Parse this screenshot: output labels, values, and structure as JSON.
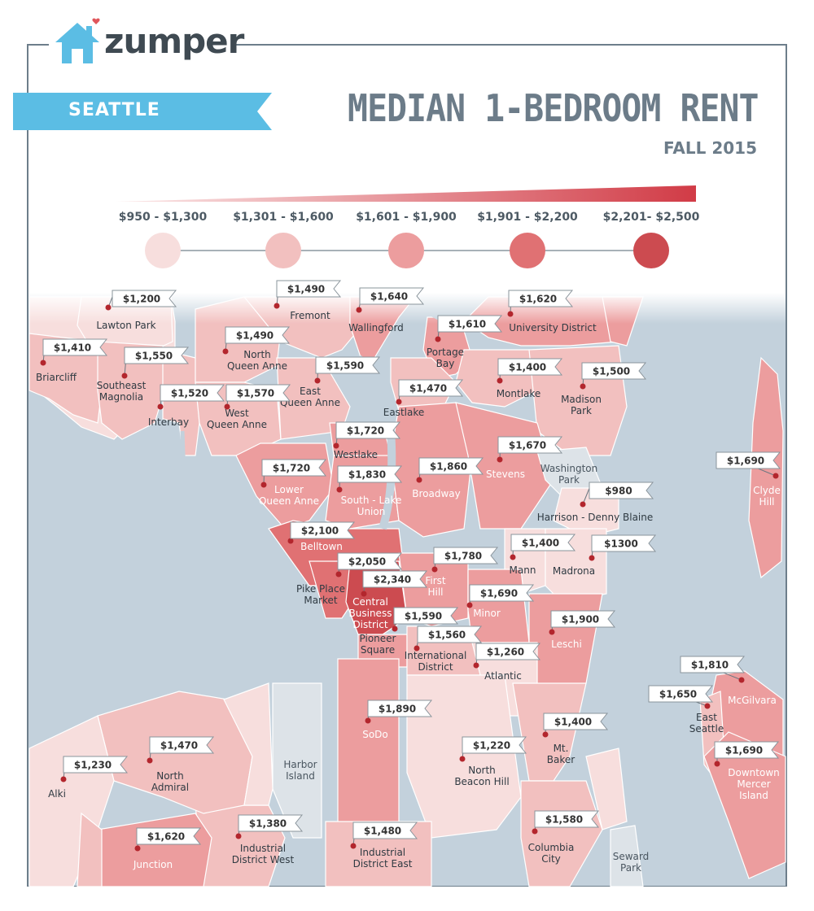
{
  "brand": {
    "name": "zumper"
  },
  "city": "SEATTLE",
  "title": "MEDIAN 1-BEDROOM RENT",
  "subtitle": "FALL 2015",
  "legend": [
    {
      "label": "$950 - $1,300",
      "color": "#f7dedd"
    },
    {
      "label": "$1,301 - $1,600",
      "color": "#f2c0bf"
    },
    {
      "label": "$1,601 - $1,900",
      "color": "#ec9d9e"
    },
    {
      "label": "$1,901 - $2,200",
      "color": "#e07173"
    },
    {
      "label": "$2,201- $2,500",
      "color": "#cc4b50"
    }
  ],
  "colors": {
    "water": "#c3d1dc",
    "frame": "#6d7e8b",
    "ribbon": "#5bbde4",
    "pin": "#b3262d",
    "park": "#dde3e8"
  },
  "neighborhoods": [
    {
      "name": "Lawton Park",
      "price": "$1,200"
    },
    {
      "name": "Fremont",
      "price": "$1,490"
    },
    {
      "name": "Wallingford",
      "price": "$1,640"
    },
    {
      "name": "University District",
      "price": "$1,620"
    },
    {
      "name": "Briarcliff",
      "price": "$1,410"
    },
    {
      "name": "Southeast Magnolia",
      "price": "$1,550"
    },
    {
      "name": "North Queen Anne",
      "price": "$1,490"
    },
    {
      "name": "Portage Bay",
      "price": "$1,610"
    },
    {
      "name": "East Queen Anne",
      "price": "$1,590"
    },
    {
      "name": "Montlake",
      "price": "$1,400"
    },
    {
      "name": "Madison Park",
      "price": "$1,500"
    },
    {
      "name": "Interbay",
      "price": "$1,520"
    },
    {
      "name": "West Queen Anne",
      "price": "$1,570"
    },
    {
      "name": "Eastlake",
      "price": "$1,470"
    },
    {
      "name": "Westlake",
      "price": "$1,720"
    },
    {
      "name": "Stevens",
      "price": "$1,670"
    },
    {
      "name": "Lower Queen Anne",
      "price": "$1,720"
    },
    {
      "name": "South - Lake Union",
      "price": "$1,830"
    },
    {
      "name": "Broadway",
      "price": "$1,860"
    },
    {
      "name": "Clyde Hill",
      "price": "$1,690"
    },
    {
      "name": "Harrison - Denny Blaine",
      "price": "$980"
    },
    {
      "name": "Belltown",
      "price": "$2,100"
    },
    {
      "name": "Mann",
      "price": "$1,400"
    },
    {
      "name": "Madrona",
      "price": "$1300"
    },
    {
      "name": "Pike Place Market",
      "price": "$2,050"
    },
    {
      "name": "First Hill",
      "price": "$1,780"
    },
    {
      "name": "Central Business District",
      "price": "$2,340"
    },
    {
      "name": "Minor",
      "price": "$1,690"
    },
    {
      "name": "Pioneer Square",
      "price": "$1,590"
    },
    {
      "name": "Leschi",
      "price": "$1,900"
    },
    {
      "name": "International District",
      "price": "$1,560"
    },
    {
      "name": "Atlantic",
      "price": "$1,260"
    },
    {
      "name": "McGilvara",
      "price": "$1,810"
    },
    {
      "name": "East Seattle",
      "price": "$1,650"
    },
    {
      "name": "SoDo",
      "price": "$1,890"
    },
    {
      "name": "Mt. Baker",
      "price": "$1,400"
    },
    {
      "name": "North Admiral",
      "price": "$1,470"
    },
    {
      "name": "Alki",
      "price": "$1,230"
    },
    {
      "name": "North Beacon Hill",
      "price": "$1,220"
    },
    {
      "name": "Downtown Mercer Island",
      "price": "$1,690"
    },
    {
      "name": "Junction",
      "price": "$1,620"
    },
    {
      "name": "Industrial District West",
      "price": "$1,380"
    },
    {
      "name": "Industrial District East",
      "price": "$1,480"
    },
    {
      "name": "Columbia City",
      "price": "$1,580"
    }
  ],
  "parks": [
    {
      "name": "Washington Park"
    },
    {
      "name": "Harbor Island"
    },
    {
      "name": "Seward Park"
    }
  ]
}
